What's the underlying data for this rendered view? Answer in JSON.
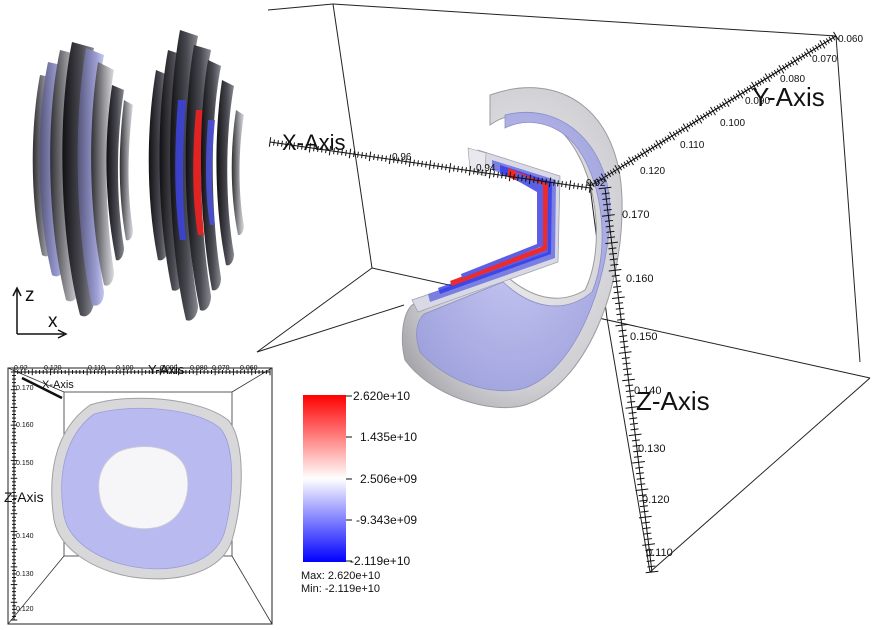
{
  "main_view": {
    "x_axis_title": "X-Axis",
    "y_axis_title": "Y-Axis",
    "z_axis_title": "Z-Axis",
    "x_ticks": [
      "0.96",
      "0.94",
      "0.92"
    ],
    "y_ticks": [
      "0.060",
      "0.070",
      "0.080",
      "0.090",
      "0.100",
      "0.110",
      "0.120"
    ],
    "z_ticks": [
      "0.170",
      "0.160",
      "0.150",
      "0.140",
      "0.130",
      "0.120",
      "0.110"
    ]
  },
  "orientation": {
    "up_label": "z",
    "right_label": "x"
  },
  "front_view": {
    "y_axis_title": "Y-Axis",
    "x_axis_title": "X-Axis",
    "z_axis_title": "Z-Axis",
    "y_ticks": [
      "0.92",
      "0.120",
      "0.110",
      "0.100",
      "0.090",
      "0.080",
      "0.070",
      "0.060"
    ],
    "z_ticks": [
      "0.170",
      "0.160",
      "0.150",
      "0.140",
      "0.130",
      "0.120",
      "0.110"
    ]
  },
  "colorbar": {
    "ticks": [
      "2.620e+10",
      "1.435e+10",
      "2.506e+09",
      "-9.343e+09",
      "-2.119e+10"
    ],
    "max_label": "Max:  2.620e+10",
    "min_label": "Min: -2.119e+10",
    "colors": {
      "top": "#ff0000",
      "middle": "#ffffff",
      "bottom": "#0000ff"
    }
  },
  "colors": {
    "shell": "#d4d4d6",
    "lavender": "#b4b6ea",
    "dark_slab": "#2a2a30"
  }
}
